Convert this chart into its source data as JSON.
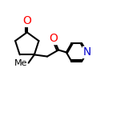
{
  "background_color": "#ffffff",
  "bond_color": "#000000",
  "bond_width": 1.5,
  "o_color": "#ff0000",
  "n_color": "#0000cc",
  "fig_width": 1.5,
  "fig_height": 1.5,
  "dpi": 100,
  "xlim": [
    0,
    10
  ],
  "ylim": [
    0,
    10
  ]
}
